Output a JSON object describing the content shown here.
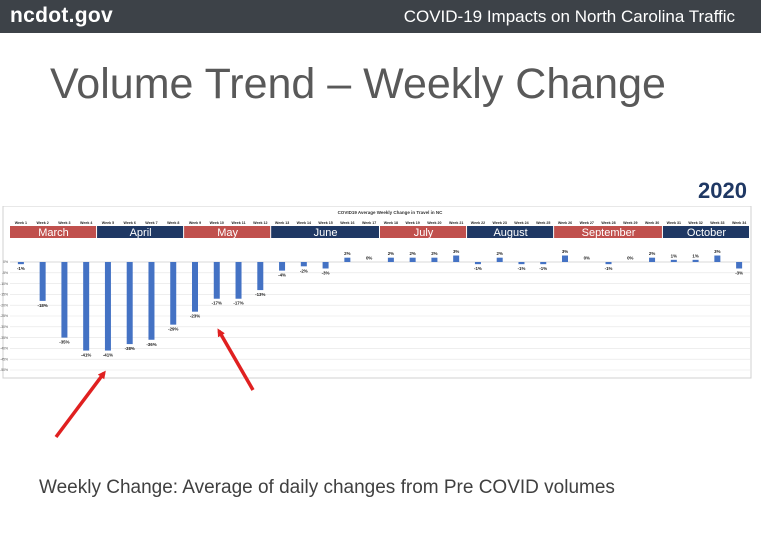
{
  "header": {
    "logo": "ncdot.gov",
    "title": "COVID-19 Impacts on North Carolina Traffic"
  },
  "slide": {
    "title": "Volume Trend – Weekly Change",
    "year": "2020",
    "caption": "Weekly Change: Average of daily changes from Pre COVID volumes"
  },
  "colors": {
    "bar": "#4472c4",
    "month_red": "#c0504d",
    "month_blue": "#1f3864",
    "arrow": "#e02020"
  },
  "chart_data": {
    "type": "bar",
    "title": "COVID19 Average Weekly Change in Travel in NC",
    "categories": [
      "Week 1",
      "Week 2",
      "Week 3",
      "Week 4",
      "Week 5",
      "Week 6",
      "Week 7",
      "Week 8",
      "Week 9",
      "Week 10",
      "Week 11",
      "Week 12",
      "Week 13",
      "Week 14",
      "Week 15",
      "Week 16",
      "Week 17",
      "Week 18",
      "Week 19",
      "Week 20",
      "Week 21",
      "Week 22",
      "Week 23",
      "Week 24",
      "Week 25",
      "Week 26",
      "Week 27",
      "Week 28",
      "Week 29",
      "Week 30",
      "Week 31",
      "Week 32",
      "Week 33",
      "Week 34"
    ],
    "values": [
      -1,
      -18,
      -35,
      -41,
      -41,
      -38,
      -36,
      -29,
      -23,
      -17,
      -17,
      -13,
      -4,
      -2,
      -3,
      2,
      0,
      2,
      2,
      2,
      3,
      -1,
      2,
      -1,
      -1,
      3,
      0,
      -1,
      0,
      2,
      1,
      1,
      3,
      -3
    ],
    "data_labels": [
      "-1%",
      "-18%",
      "-35%",
      "-41%",
      "-41%",
      "-38%",
      "-36%",
      "-29%",
      "-23%",
      "-17%",
      "-17%",
      "-13%",
      "-4%",
      "-2%",
      "-3%",
      "2%",
      "0%",
      "2%",
      "2%",
      "2%",
      "3%",
      "-1%",
      "2%",
      "-1%",
      "-1%",
      "3%",
      "0%",
      "-1%",
      "0%",
      "2%",
      "1%",
      "1%",
      "3%",
      "-3%"
    ],
    "months": [
      {
        "name": "March",
        "start": 0,
        "end": 3,
        "color": "#c0504d"
      },
      {
        "name": "April",
        "start": 4,
        "end": 7,
        "color": "#1f3864"
      },
      {
        "name": "May",
        "start": 8,
        "end": 11,
        "color": "#c0504d"
      },
      {
        "name": "June",
        "start": 12,
        "end": 16,
        "color": "#1f3864"
      },
      {
        "name": "July",
        "start": 17,
        "end": 20,
        "color": "#c0504d"
      },
      {
        "name": "August",
        "start": 21,
        "end": 24,
        "color": "#1f3864"
      },
      {
        "name": "September",
        "start": 25,
        "end": 29,
        "color": "#c0504d"
      },
      {
        "name": "October",
        "start": 30,
        "end": 33,
        "color": "#1f3864"
      }
    ],
    "ylim": [
      -50,
      5
    ],
    "yticks": [
      "0%",
      "-5%",
      "-10%",
      "-15%",
      "-20%",
      "-25%",
      "-30%",
      "-35%",
      "-40%",
      "-45%",
      "-50%"
    ],
    "grid": true,
    "xlabel": "",
    "ylabel": ""
  }
}
